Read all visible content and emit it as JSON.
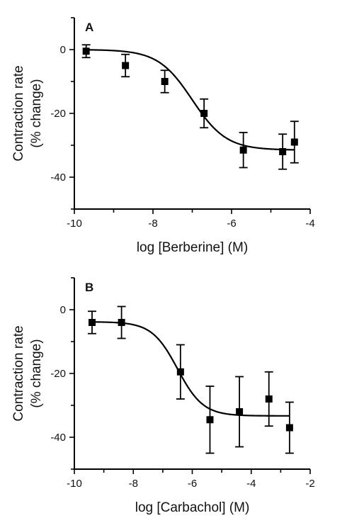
{
  "chart_data": [
    {
      "type": "scatter",
      "panel_label": "A",
      "xlabel": "log [Berberine] (M)",
      "ylabel_line1": "Contraction rate",
      "ylabel_line2": "(% change)",
      "xlim": [
        -10,
        -4
      ],
      "ylim": [
        -50,
        10
      ],
      "xticks": [
        -10,
        -8,
        -6,
        -4
      ],
      "yticks": [
        0,
        -20,
        -40
      ],
      "points": [
        {
          "x": -9.7,
          "y": -0.5,
          "err": 2.0
        },
        {
          "x": -8.7,
          "y": -5.0,
          "err": 3.5
        },
        {
          "x": -7.7,
          "y": -10.0,
          "err": 3.5
        },
        {
          "x": -6.7,
          "y": -20.0,
          "err": 4.5
        },
        {
          "x": -5.7,
          "y": -31.5,
          "err": 5.5
        },
        {
          "x": -4.7,
          "y": -32.0,
          "err": 5.5
        },
        {
          "x": -4.4,
          "y": -29.0,
          "err": 6.5
        }
      ],
      "fit": {
        "type": "sigmoid",
        "top": 0,
        "bottom": -31.5,
        "logEC50": -7.0,
        "hill": 1.0,
        "x_range": [
          -9.7,
          -4.4
        ]
      }
    },
    {
      "type": "scatter",
      "panel_label": "B",
      "xlabel": "log [Carbachol] (M)",
      "ylabel_line1": "Contraction rate",
      "ylabel_line2": "(% change)",
      "xlim": [
        -10,
        -2
      ],
      "ylim": [
        -50,
        10
      ],
      "xticks": [
        -10,
        -8,
        -6,
        -4,
        -2
      ],
      "yticks": [
        0,
        -20,
        -40
      ],
      "points": [
        {
          "x": -9.4,
          "y": -4.0,
          "err": 3.5
        },
        {
          "x": -8.4,
          "y": -4.0,
          "err": 5.0
        },
        {
          "x": -6.4,
          "y": -19.5,
          "err": 8.5
        },
        {
          "x": -5.4,
          "y": -34.5,
          "err": 10.5
        },
        {
          "x": -4.4,
          "y": -32.0,
          "err": 11.0
        },
        {
          "x": -3.4,
          "y": -28.0,
          "err": 8.5
        },
        {
          "x": -2.7,
          "y": -37.0,
          "err": 8.0
        }
      ],
      "fit": {
        "type": "sigmoid",
        "top": -3.8,
        "bottom": -33.3,
        "logEC50": -6.5,
        "hill": 1.0,
        "x_range": [
          -9.4,
          -2.7
        ]
      }
    }
  ]
}
